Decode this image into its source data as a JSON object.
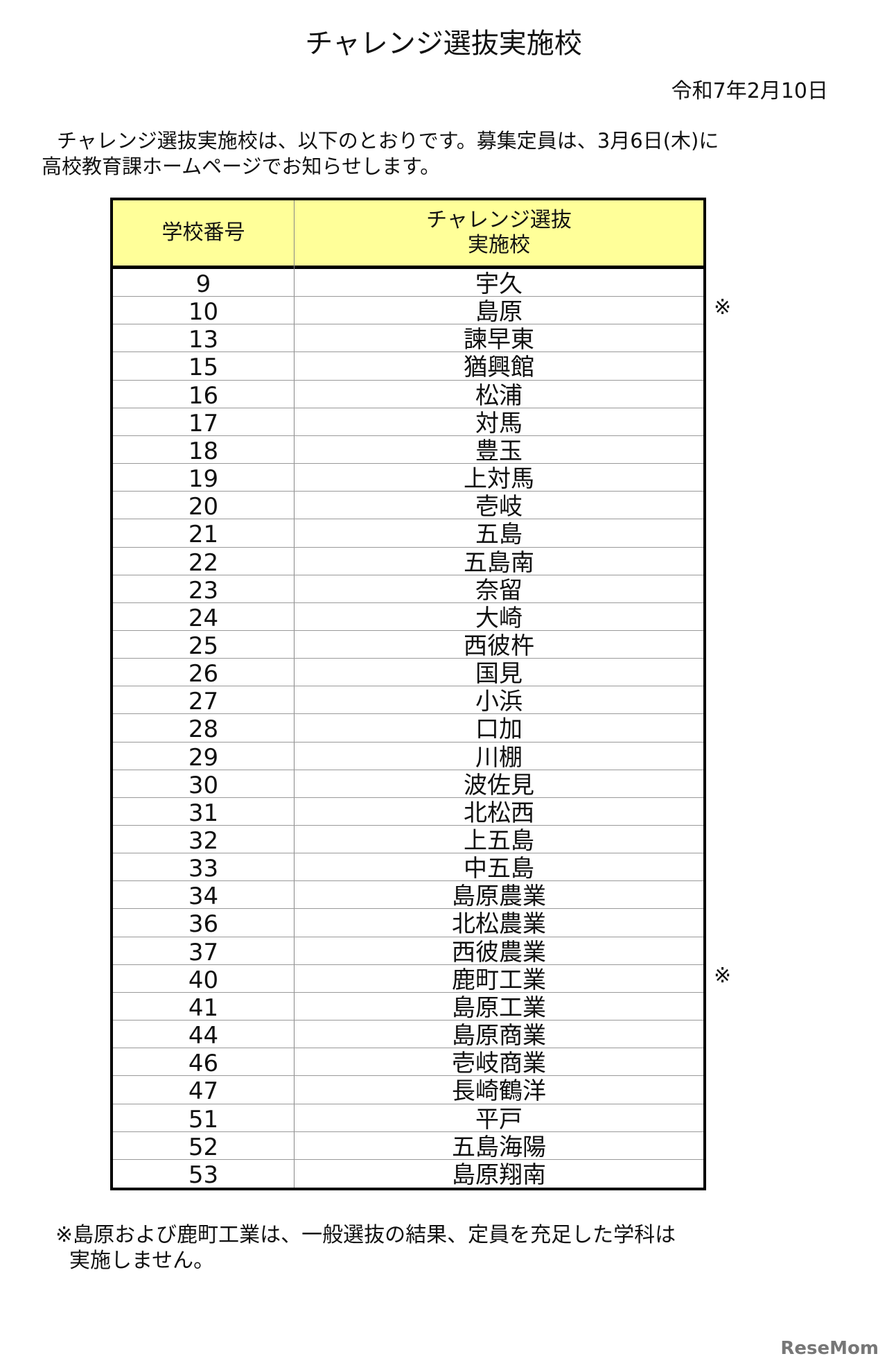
{
  "header": {
    "title": "チャレンジ選抜実施校",
    "date": "令和7年2月10日"
  },
  "intro": [
    "チャレンジ選抜実施校は、以下のとおりです。募集定員は、3月6日(木)に",
    "高校教育課ホームページでお知らせします。"
  ],
  "table": {
    "columns": [
      "学校番号",
      "チャレンジ選抜\n実施校"
    ],
    "rows": [
      {
        "number": 9,
        "school": "宇久"
      },
      {
        "number": 10,
        "school": "島原",
        "note": "※"
      },
      {
        "number": 13,
        "school": "諫早東"
      },
      {
        "number": 15,
        "school": "猶興館"
      },
      {
        "number": 16,
        "school": "松浦"
      },
      {
        "number": 17,
        "school": "対馬"
      },
      {
        "number": 18,
        "school": "豊玉"
      },
      {
        "number": 19,
        "school": "上対馬"
      },
      {
        "number": 20,
        "school": "壱岐"
      },
      {
        "number": 21,
        "school": "五島"
      },
      {
        "number": 22,
        "school": "五島南"
      },
      {
        "number": 23,
        "school": "奈留"
      },
      {
        "number": 24,
        "school": "大崎"
      },
      {
        "number": 25,
        "school": "西彼杵"
      },
      {
        "number": 26,
        "school": "国見"
      },
      {
        "number": 27,
        "school": "小浜"
      },
      {
        "number": 28,
        "school": "口加"
      },
      {
        "number": 29,
        "school": "川棚"
      },
      {
        "number": 30,
        "school": "波佐見"
      },
      {
        "number": 31,
        "school": "北松西"
      },
      {
        "number": 32,
        "school": "上五島"
      },
      {
        "number": 33,
        "school": "中五島"
      },
      {
        "number": 34,
        "school": "島原農業"
      },
      {
        "number": 36,
        "school": "北松農業"
      },
      {
        "number": 37,
        "school": "西彼農業"
      },
      {
        "number": 40,
        "school": "鹿町工業",
        "note": "※"
      },
      {
        "number": 41,
        "school": "島原工業"
      },
      {
        "number": 44,
        "school": "島原商業"
      },
      {
        "number": 46,
        "school": "壱岐商業"
      },
      {
        "number": 47,
        "school": "長崎鶴洋"
      },
      {
        "number": 51,
        "school": "平戸"
      },
      {
        "number": 52,
        "school": "五島海陽"
      },
      {
        "number": 53,
        "school": "島原翔南"
      }
    ]
  },
  "footnote": [
    "※島原および鹿町工業は、一般選抜の結果、定員を充足した学科は",
    "実施しません。"
  ],
  "watermark": "ReseMom"
}
